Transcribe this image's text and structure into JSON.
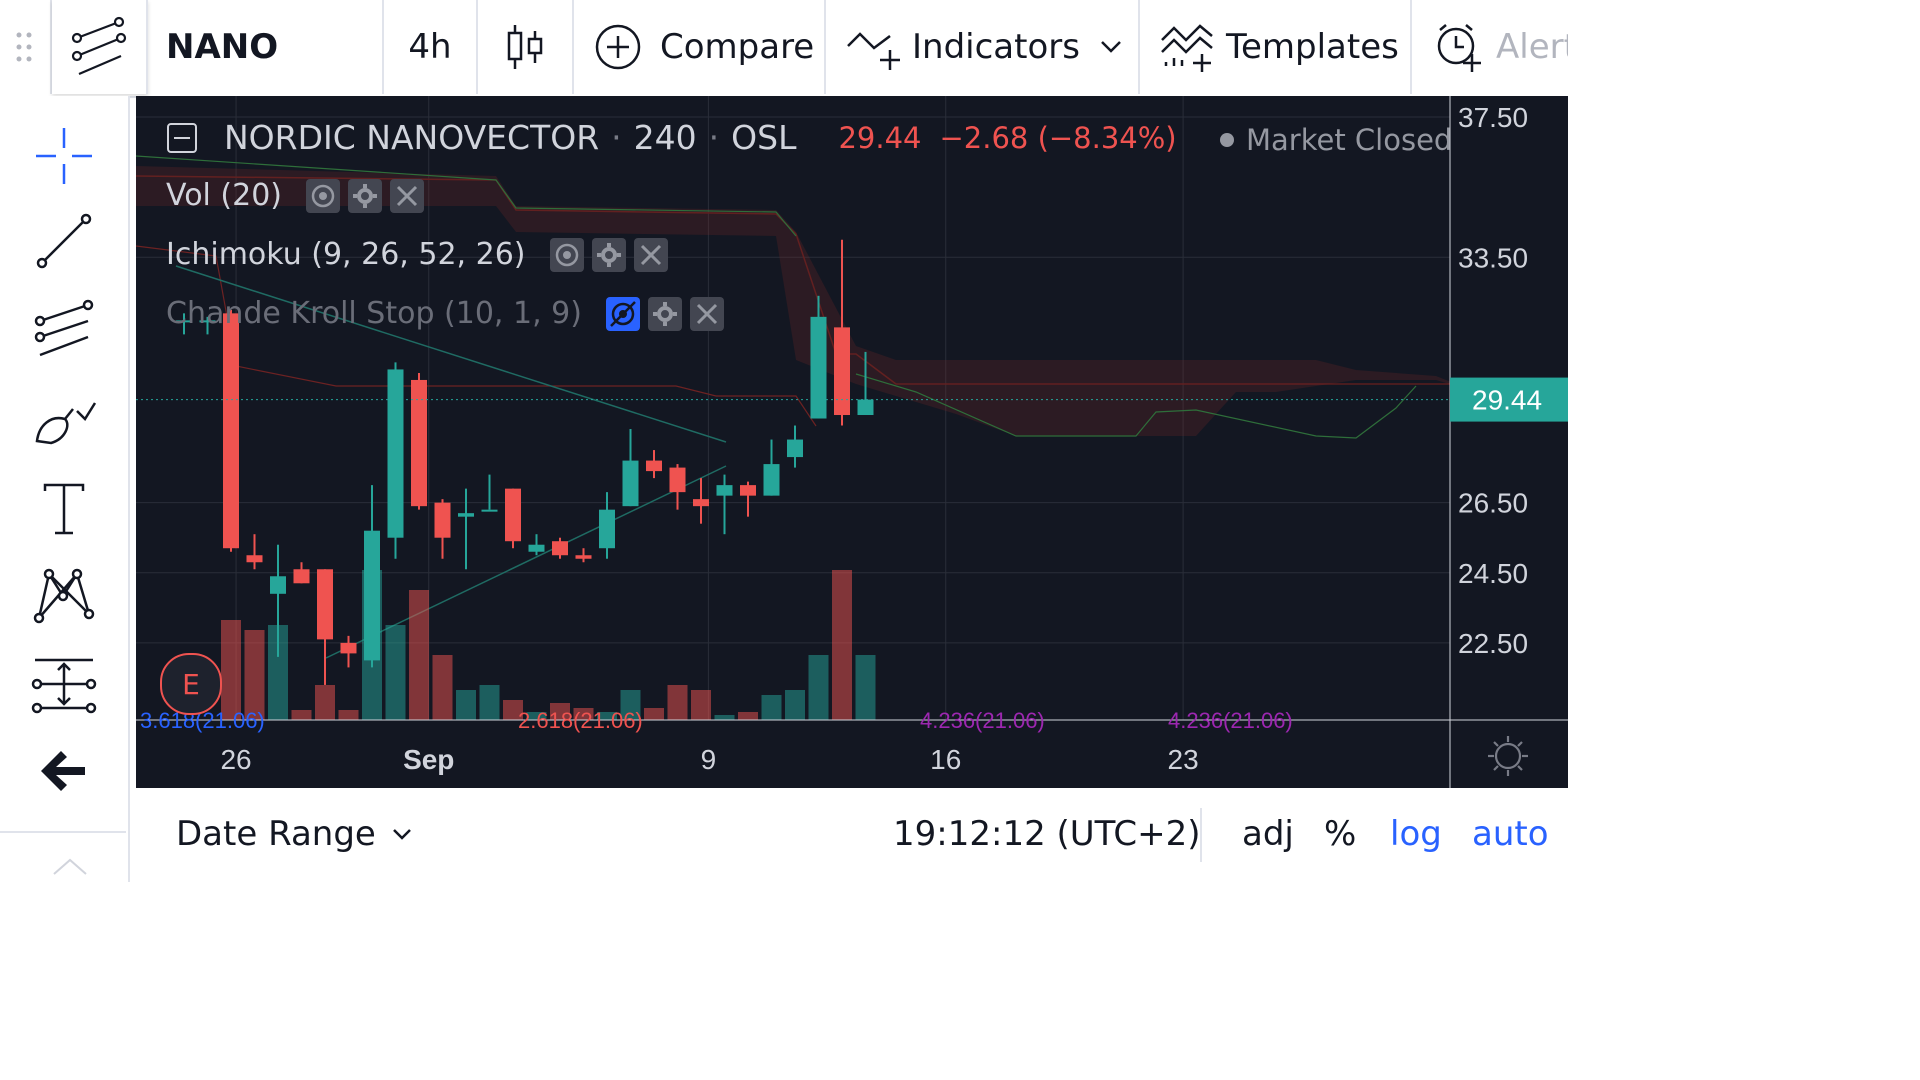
{
  "toolbar": {
    "symbol": "NANO",
    "interval": "4h",
    "compare_label": "Compare",
    "indicators_label": "Indicators",
    "templates_label": "Templates",
    "alert_label": "Alert"
  },
  "legend": {
    "name": "NORDIC NANOVECTOR",
    "sep1": "·",
    "interval": "240",
    "sep2": "·",
    "exchange": "OSL",
    "price": "29.44",
    "change": "−2.68 (−8.34%)",
    "status": "Market Closed",
    "indicators": [
      {
        "label": "Vol (20)"
      },
      {
        "label": "Ichimoku (9, 26, 52, 26)"
      },
      {
        "label": "Chande Kroll Stop (10, 1, 9)"
      }
    ],
    "earnings_marker": "E"
  },
  "colors": {
    "up": "#26a69a",
    "down": "#ef5350",
    "background": "#131722",
    "accent": "#2962ff",
    "price_label": "#26a69a"
  },
  "chart_data": {
    "type": "candlestick",
    "title": "NORDIC NANOVECTOR · 240 · OSL",
    "x_tick_labels": [
      "26",
      "Sep",
      "9",
      "16",
      "23"
    ],
    "y_tick_labels": [
      "37.50",
      "33.50",
      "29.44",
      "26.50",
      "24.50",
      "22.50"
    ],
    "ylim": [
      20.3,
      38.1
    ],
    "last_price": 29.44,
    "candles": [
      {
        "i": 0,
        "o": 31.7,
        "h": 31.9,
        "l": 31.3,
        "c": 31.7
      },
      {
        "i": 1,
        "o": 31.7,
        "h": 31.8,
        "l": 31.3,
        "c": 31.7
      },
      {
        "i": 2,
        "o": 31.9,
        "h": 32.0,
        "l": 25.1,
        "c": 25.2
      },
      {
        "i": 3,
        "o": 25.0,
        "h": 25.6,
        "l": 24.6,
        "c": 24.8
      },
      {
        "i": 4,
        "o": 23.9,
        "h": 25.3,
        "l": 22.1,
        "c": 24.4
      },
      {
        "i": 5,
        "o": 24.6,
        "h": 24.8,
        "l": 24.2,
        "c": 24.2
      },
      {
        "i": 6,
        "o": 24.6,
        "h": 24.6,
        "l": 21.3,
        "c": 22.6
      },
      {
        "i": 7,
        "o": 22.5,
        "h": 22.7,
        "l": 21.8,
        "c": 22.2
      },
      {
        "i": 8,
        "o": 22.0,
        "h": 27.0,
        "l": 21.8,
        "c": 25.7
      },
      {
        "i": 9,
        "o": 25.5,
        "h": 30.5,
        "l": 24.9,
        "c": 30.3
      },
      {
        "i": 10,
        "o": 30.0,
        "h": 30.2,
        "l": 26.3,
        "c": 26.4
      },
      {
        "i": 11,
        "o": 26.5,
        "h": 26.6,
        "l": 24.9,
        "c": 25.5
      },
      {
        "i": 12,
        "o": 26.1,
        "h": 26.9,
        "l": 24.6,
        "c": 26.2
      },
      {
        "i": 13,
        "o": 26.3,
        "h": 27.3,
        "l": 26.3,
        "c": 26.3
      },
      {
        "i": 14,
        "o": 26.9,
        "h": 26.9,
        "l": 25.2,
        "c": 25.4
      },
      {
        "i": 15,
        "o": 25.1,
        "h": 25.6,
        "l": 25.0,
        "c": 25.3
      },
      {
        "i": 16,
        "o": 25.4,
        "h": 25.5,
        "l": 24.9,
        "c": 25.0
      },
      {
        "i": 17,
        "o": 25.0,
        "h": 25.2,
        "l": 24.8,
        "c": 24.9
      },
      {
        "i": 18,
        "o": 25.2,
        "h": 26.8,
        "l": 24.9,
        "c": 26.3
      },
      {
        "i": 19,
        "o": 26.4,
        "h": 28.6,
        "l": 26.4,
        "c": 27.7
      },
      {
        "i": 20,
        "o": 27.7,
        "h": 28.0,
        "l": 27.2,
        "c": 27.4
      },
      {
        "i": 21,
        "o": 27.5,
        "h": 27.6,
        "l": 26.3,
        "c": 26.8
      },
      {
        "i": 22,
        "o": 26.6,
        "h": 27.2,
        "l": 25.9,
        "c": 26.4
      },
      {
        "i": 23,
        "o": 26.7,
        "h": 27.3,
        "l": 25.6,
        "c": 27.0
      },
      {
        "i": 24,
        "o": 27.0,
        "h": 27.1,
        "l": 26.1,
        "c": 26.7
      },
      {
        "i": 25,
        "o": 26.7,
        "h": 28.3,
        "l": 26.7,
        "c": 27.6
      },
      {
        "i": 26,
        "o": 27.8,
        "h": 28.7,
        "l": 27.5,
        "c": 28.3
      },
      {
        "i": 27,
        "o": 28.9,
        "h": 32.4,
        "l": 28.9,
        "c": 31.8
      },
      {
        "i": 28,
        "o": 31.5,
        "h": 34.0,
        "l": 28.7,
        "c": 29.0
      },
      {
        "i": 29,
        "o": 29.0,
        "h": 30.8,
        "l": 29.0,
        "c": 29.44
      }
    ],
    "volume_ylim": [
      0,
      3000
    ],
    "volume": [
      0,
      0,
      1000,
      900,
      950,
      100,
      350,
      100,
      1500,
      950,
      1300,
      650,
      300,
      350,
      200,
      80,
      170,
      120,
      80,
      300,
      120,
      350,
      300,
      50,
      80,
      250,
      300,
      650,
      1500,
      650
    ],
    "annotations": [
      "3.618(21.06)",
      "4.236(21.06)",
      "2.618(21.06)",
      "4.236(21.06)"
    ]
  },
  "bottombar": {
    "date_range_label": "Date Range",
    "time": "19:12:12 (UTC+2)",
    "adj": "adj",
    "percent": "%",
    "log": "log",
    "auto": "auto"
  }
}
